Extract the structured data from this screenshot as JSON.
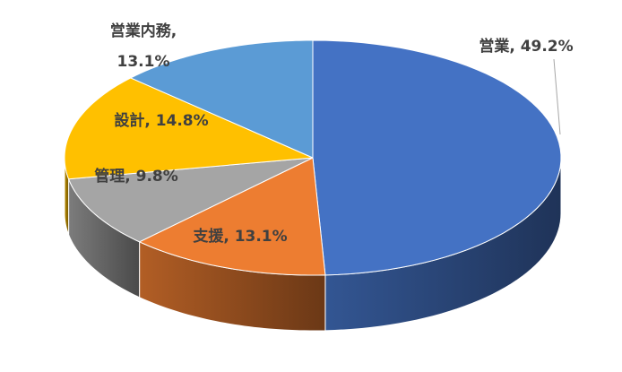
{
  "chart_data": {
    "type": "pie3d",
    "values": [
      49.2,
      13.1,
      9.8,
      14.8,
      13.1
    ],
    "value_labels": [
      "営業, 49.2%",
      "支援, 13.1%",
      "管理, 9.8%",
      "設計, 14.8%",
      "営業内務, 13.1%"
    ],
    "colors": [
      "#4472c4",
      "#ed7d31",
      "#a5a5a5",
      "#ffc000",
      "#5b9bd5"
    ]
  }
}
